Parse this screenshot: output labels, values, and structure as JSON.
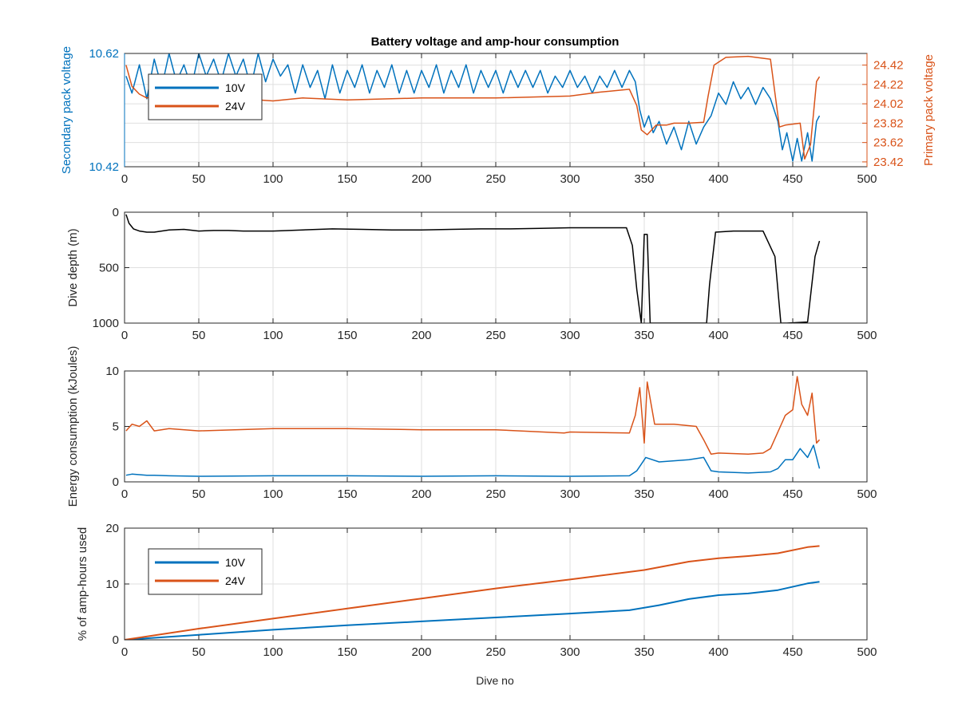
{
  "figure": {
    "title": "Battery voltage and amp-hour consumption",
    "xlabel": "Dive no"
  },
  "colors": {
    "v10": "#0072BD",
    "v24": "#D95319",
    "depth": "#000000",
    "grid": "#dfdfdf",
    "axis": "#262626"
  },
  "chart_data": [
    {
      "type": "line",
      "ylabel": "Secondary pack voltage",
      "ylabel_right": "Primary pack voltage",
      "xlim": [
        0,
        500
      ],
      "ylim": [
        10.42,
        10.62
      ],
      "ylim_right": [
        23.37,
        24.54
      ],
      "xticks": [
        0,
        50,
        100,
        150,
        200,
        250,
        300,
        350,
        400,
        450,
        500
      ],
      "yticks": [
        10.42,
        10.62
      ],
      "yticks_right": [
        23.42,
        23.62,
        23.82,
        24.02,
        24.22,
        24.42
      ],
      "grid": true,
      "legend": "upper-left",
      "series": [
        {
          "name": "10V",
          "axis": "left",
          "x": [
            1,
            5,
            10,
            15,
            20,
            25,
            30,
            35,
            40,
            45,
            50,
            55,
            60,
            65,
            70,
            75,
            80,
            85,
            90,
            95,
            100,
            105,
            110,
            115,
            120,
            125,
            130,
            135,
            140,
            145,
            150,
            155,
            160,
            165,
            170,
            175,
            180,
            185,
            190,
            195,
            200,
            205,
            210,
            215,
            220,
            225,
            230,
            235,
            240,
            245,
            250,
            255,
            260,
            265,
            270,
            275,
            280,
            285,
            290,
            295,
            300,
            305,
            310,
            315,
            320,
            325,
            330,
            335,
            340,
            344,
            347,
            350,
            353,
            356,
            360,
            365,
            370,
            375,
            380,
            385,
            390,
            395,
            400,
            405,
            410,
            415,
            420,
            425,
            430,
            435,
            440,
            443,
            446,
            450,
            453,
            456,
            460,
            463,
            466,
            468
          ],
          "y": [
            10.58,
            10.55,
            10.6,
            10.54,
            10.61,
            10.56,
            10.62,
            10.57,
            10.6,
            10.56,
            10.62,
            10.58,
            10.61,
            10.57,
            10.62,
            10.58,
            10.61,
            10.56,
            10.62,
            10.57,
            10.61,
            10.58,
            10.6,
            10.55,
            10.6,
            10.56,
            10.59,
            10.54,
            10.6,
            10.55,
            10.59,
            10.56,
            10.6,
            10.55,
            10.59,
            10.56,
            10.6,
            10.55,
            10.59,
            10.55,
            10.59,
            10.56,
            10.6,
            10.55,
            10.59,
            10.56,
            10.6,
            10.55,
            10.59,
            10.56,
            10.59,
            10.55,
            10.59,
            10.56,
            10.59,
            10.56,
            10.59,
            10.55,
            10.58,
            10.56,
            10.59,
            10.56,
            10.58,
            10.55,
            10.58,
            10.56,
            10.59,
            10.56,
            10.59,
            10.57,
            10.52,
            10.49,
            10.51,
            10.48,
            10.5,
            10.46,
            10.49,
            10.45,
            10.5,
            10.46,
            10.49,
            10.51,
            10.55,
            10.53,
            10.57,
            10.54,
            10.56,
            10.53,
            10.56,
            10.54,
            10.5,
            10.45,
            10.48,
            10.43,
            10.47,
            10.43,
            10.48,
            10.43,
            10.5,
            10.51
          ]
        },
        {
          "name": "24V",
          "axis": "right",
          "x": [
            1,
            5,
            10,
            15,
            20,
            30,
            40,
            60,
            80,
            100,
            120,
            150,
            200,
            250,
            300,
            320,
            340,
            345,
            348,
            352,
            358,
            365,
            370,
            380,
            390,
            393,
            397,
            405,
            420,
            435,
            441,
            445,
            455,
            458,
            462,
            466,
            468
          ],
          "y": [
            24.42,
            24.2,
            24.12,
            24.08,
            24.1,
            24.08,
            24.05,
            24.06,
            24.07,
            24.05,
            24.08,
            24.06,
            24.08,
            24.08,
            24.1,
            24.14,
            24.17,
            24.0,
            23.75,
            23.7,
            23.8,
            23.8,
            23.82,
            23.82,
            23.83,
            24.1,
            24.42,
            24.5,
            24.51,
            24.48,
            23.78,
            23.8,
            23.82,
            23.45,
            23.6,
            24.25,
            24.3
          ]
        }
      ]
    },
    {
      "type": "line",
      "ylabel": "Dive depth (m)",
      "xlim": [
        0,
        500
      ],
      "ylim": [
        0,
        1000
      ],
      "y_reversed": true,
      "xticks": [
        0,
        50,
        100,
        150,
        200,
        250,
        300,
        350,
        400,
        450,
        500
      ],
      "yticks": [
        0,
        500,
        1000
      ],
      "grid": true,
      "series": [
        {
          "x": [
            1,
            3,
            6,
            10,
            15,
            20,
            30,
            40,
            50,
            60,
            70,
            80,
            100,
            120,
            140,
            160,
            180,
            200,
            220,
            240,
            260,
            280,
            300,
            320,
            338,
            342,
            345,
            348,
            350,
            352,
            354,
            356,
            380,
            392,
            394,
            398,
            410,
            430,
            438,
            442,
            446,
            460,
            465,
            468
          ],
          "y": [
            20,
            100,
            150,
            170,
            180,
            180,
            160,
            155,
            170,
            165,
            165,
            170,
            170,
            160,
            150,
            155,
            160,
            160,
            155,
            150,
            150,
            145,
            140,
            140,
            140,
            300,
            700,
            1000,
            200,
            200,
            1000,
            1000,
            1000,
            1000,
            650,
            180,
            170,
            170,
            400,
            1000,
            1000,
            990,
            400,
            260
          ]
        }
      ]
    },
    {
      "type": "line",
      "ylabel": "Energy consumption (kJoules)",
      "xlim": [
        0,
        500
      ],
      "ylim": [
        0,
        10
      ],
      "xticks": [
        0,
        50,
        100,
        150,
        200,
        250,
        300,
        350,
        400,
        450,
        500
      ],
      "yticks": [
        0,
        5,
        10
      ],
      "grid": true,
      "series": [
        {
          "name": "10V",
          "x": [
            1,
            5,
            10,
            15,
            20,
            30,
            50,
            100,
            150,
            200,
            250,
            295,
            300,
            340,
            345,
            348,
            351,
            360,
            380,
            390,
            395,
            400,
            420,
            435,
            440,
            445,
            450,
            455,
            460,
            464,
            468
          ],
          "y": [
            0.6,
            0.7,
            0.65,
            0.6,
            0.6,
            0.55,
            0.5,
            0.55,
            0.55,
            0.5,
            0.55,
            0.5,
            0.5,
            0.55,
            1.0,
            1.6,
            2.2,
            1.8,
            2.0,
            2.2,
            1.0,
            0.9,
            0.8,
            0.9,
            1.2,
            2.0,
            2.0,
            3.0,
            2.2,
            3.3,
            1.2
          ]
        },
        {
          "name": "24V",
          "x": [
            1,
            5,
            10,
            15,
            20,
            30,
            50,
            100,
            150,
            200,
            250,
            296,
            300,
            340,
            344,
            347,
            350,
            352,
            357,
            370,
            385,
            390,
            395,
            400,
            420,
            430,
            435,
            440,
            445,
            450,
            453,
            456,
            460,
            463,
            466,
            468
          ],
          "y": [
            4.6,
            5.2,
            5.0,
            5.5,
            4.6,
            4.8,
            4.6,
            4.8,
            4.8,
            4.7,
            4.7,
            4.4,
            4.5,
            4.4,
            6.0,
            8.5,
            3.5,
            9.0,
            5.2,
            5.2,
            5.0,
            3.8,
            2.5,
            2.6,
            2.5,
            2.6,
            3.0,
            4.5,
            6.0,
            6.5,
            9.5,
            7.0,
            6.0,
            8.0,
            3.5,
            3.8
          ]
        }
      ]
    },
    {
      "type": "line",
      "ylabel": "% of amp-hours used",
      "xlim": [
        0,
        500
      ],
      "ylim": [
        0,
        20
      ],
      "xticks": [
        0,
        50,
        100,
        150,
        200,
        250,
        300,
        350,
        400,
        450,
        500
      ],
      "yticks": [
        0,
        10,
        20
      ],
      "grid": true,
      "legend": "upper-left",
      "series": [
        {
          "name": "10V",
          "x": [
            0,
            50,
            100,
            150,
            200,
            250,
            300,
            340,
            360,
            380,
            400,
            420,
            440,
            460,
            468
          ],
          "y": [
            0,
            0.9,
            1.8,
            2.6,
            3.3,
            4.0,
            4.7,
            5.3,
            6.2,
            7.3,
            8.0,
            8.3,
            8.9,
            10.1,
            10.4
          ]
        },
        {
          "name": "24V",
          "x": [
            0,
            50,
            100,
            150,
            200,
            250,
            300,
            350,
            380,
            400,
            420,
            440,
            460,
            468
          ],
          "y": [
            0,
            2.0,
            3.8,
            5.6,
            7.4,
            9.2,
            10.8,
            12.5,
            14.0,
            14.6,
            15.0,
            15.5,
            16.6,
            16.8
          ]
        }
      ]
    }
  ]
}
